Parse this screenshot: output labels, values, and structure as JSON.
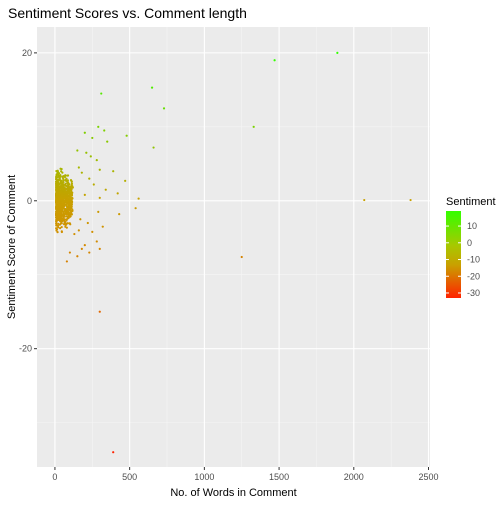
{
  "chart_data": {
    "type": "scatter",
    "title": "Sentiment Scores vs. Comment length",
    "xlabel": "No. of Words in Comment",
    "ylabel": "Sentiment Score of Comment",
    "xlim": [
      -120,
      2510
    ],
    "ylim": [
      -36,
      23.5
    ],
    "xticks": [
      0,
      500,
      1000,
      1500,
      2000,
      2500
    ],
    "yticks": [
      -20,
      0,
      20
    ],
    "xtick_labels": [
      "0",
      "500",
      "1000",
      "1500",
      "2000",
      "2500"
    ],
    "ytick_labels": [
      "-20",
      "0",
      "20"
    ],
    "grid": true,
    "legend": {
      "title": "Sentiment",
      "placement": "right",
      "range": [
        -33,
        19
      ],
      "tick_values": [
        10,
        0,
        -10,
        -20,
        -30
      ],
      "tick_labels": [
        "10",
        "0",
        "-10",
        "-20",
        "-30"
      ],
      "colors": {
        "low": "#ff2200",
        "mid": "#c9a000",
        "high": "#33ff00"
      }
    },
    "points": [
      [
        1890,
        20
      ],
      [
        1470,
        19
      ],
      [
        650,
        15.3
      ],
      [
        730,
        12.5
      ],
      [
        310,
        14.5
      ],
      [
        1330,
        10
      ],
      [
        290,
        10
      ],
      [
        330,
        9.5
      ],
      [
        200,
        9.2
      ],
      [
        480,
        8.8
      ],
      [
        250,
        8.5
      ],
      [
        660,
        7.2
      ],
      [
        350,
        8
      ],
      [
        150,
        6.8
      ],
      [
        210,
        6.5
      ],
      [
        240,
        6
      ],
      [
        280,
        5.5
      ],
      [
        160,
        4.5
      ],
      [
        300,
        4.2
      ],
      [
        180,
        3.8
      ],
      [
        390,
        4
      ],
      [
        470,
        2.7
      ],
      [
        230,
        3
      ],
      [
        260,
        2.2
      ],
      [
        120,
        1.8
      ],
      [
        340,
        1.5
      ],
      [
        420,
        1
      ],
      [
        200,
        0.8
      ],
      [
        560,
        0.3
      ],
      [
        300,
        0.4
      ],
      [
        2070,
        0.1
      ],
      [
        2380,
        0.1
      ],
      [
        540,
        -1
      ],
      [
        290,
        -1.5
      ],
      [
        430,
        -1.8
      ],
      [
        170,
        -2.5
      ],
      [
        220,
        -3
      ],
      [
        320,
        -3.5
      ],
      [
        160,
        -4
      ],
      [
        250,
        -4.2
      ],
      [
        130,
        -4.5
      ],
      [
        280,
        -5.5
      ],
      [
        200,
        -6
      ],
      [
        300,
        -6.5
      ],
      [
        180,
        -6.5
      ],
      [
        100,
        -7
      ],
      [
        230,
        -7
      ],
      [
        150,
        -7.5
      ],
      [
        80,
        -8.2
      ],
      [
        1250,
        -7.6
      ],
      [
        300,
        -15
      ],
      [
        390,
        -34
      ]
    ]
  }
}
